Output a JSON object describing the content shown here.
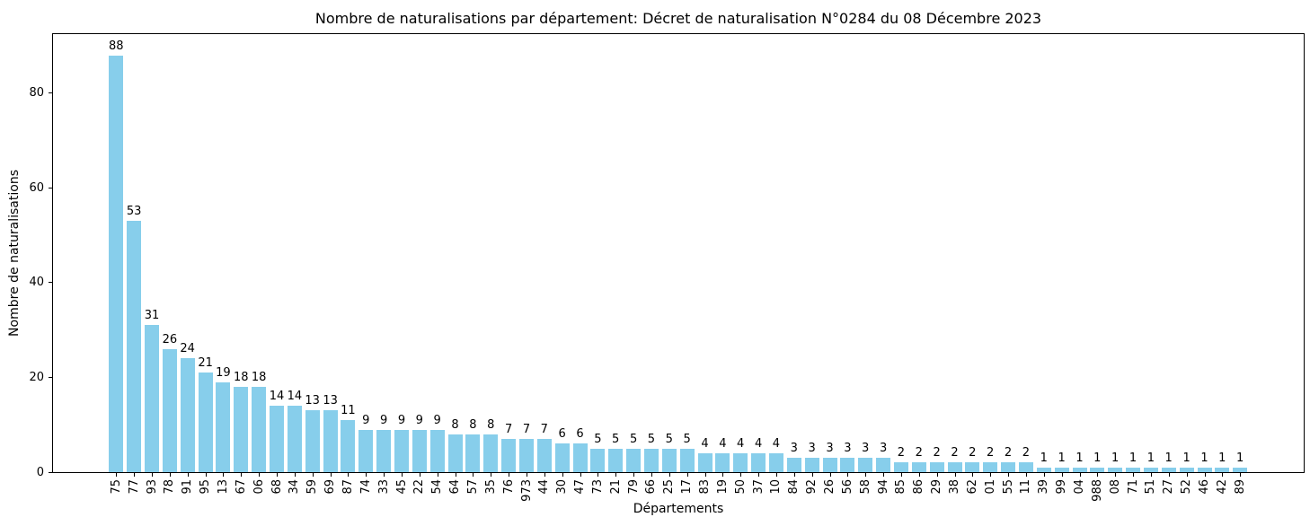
{
  "figure": {
    "background": "#ffffff",
    "text_color": "#000000"
  },
  "chart_data": {
    "type": "bar",
    "title": "Nombre de naturalisations par département: Décret de naturalisation N°0284 du 08 Décembre 2023",
    "xlabel": "Départements",
    "ylabel": "Nombre de naturalisations",
    "categories": [
      "75",
      "77",
      "93",
      "78",
      "91",
      "95",
      "13",
      "67",
      "06",
      "68",
      "34",
      "59",
      "69",
      "87",
      "74",
      "33",
      "45",
      "22",
      "54",
      "64",
      "57",
      "35",
      "76",
      "973",
      "44",
      "30",
      "47",
      "73",
      "21",
      "79",
      "66",
      "25",
      "17",
      "83",
      "19",
      "50",
      "37",
      "10",
      "84",
      "92",
      "26",
      "56",
      "58",
      "94",
      "85",
      "86",
      "29",
      "38",
      "62",
      "01",
      "55",
      "11",
      "39",
      "99",
      "04",
      "988",
      "08",
      "71",
      "51",
      "27",
      "52",
      "46",
      "42",
      "89"
    ],
    "values": [
      88,
      53,
      31,
      26,
      24,
      21,
      19,
      18,
      18,
      14,
      14,
      13,
      13,
      11,
      9,
      9,
      9,
      9,
      9,
      8,
      8,
      8,
      7,
      7,
      7,
      6,
      6,
      5,
      5,
      5,
      5,
      5,
      5,
      4,
      4,
      4,
      4,
      4,
      3,
      3,
      3,
      3,
      3,
      3,
      2,
      2,
      2,
      2,
      2,
      2,
      2,
      2,
      1,
      1,
      1,
      1,
      1,
      1,
      1,
      1,
      1,
      1,
      1,
      1
    ],
    "value_labels_shown": true,
    "yticks": [
      0,
      20,
      40,
      60,
      80
    ],
    "ylim": [
      0,
      92.45
    ],
    "bar_color": "#87CEEB",
    "axis_color": "#000000",
    "grid": false,
    "legend": null
  }
}
